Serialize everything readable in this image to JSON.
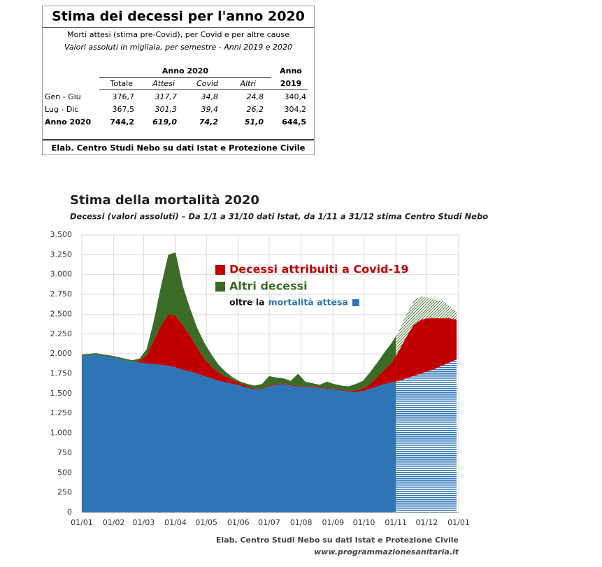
{
  "table": {
    "title": "Stima dei decessi per l'anno 2020",
    "subtitle": "Morti attesi (stima pre-Covid), per Covid e per altre cause",
    "subtitle2": "Valori assoluti in migliaia, per semestre - Anni 2019 e 2020",
    "group_header": "Anno 2020",
    "group_header2": "Anno",
    "columns": [
      "Totale",
      "Attesi",
      "Covid",
      "Altri",
      "2019"
    ],
    "rows": [
      [
        "Gen - Giu",
        "376,7",
        "317,7",
        "34,8",
        "24,8",
        "340,4"
      ],
      [
        "Lug - Dic",
        "367,5",
        "301,3",
        "39,4",
        "26,2",
        "304,2"
      ],
      [
        "Anno 2020",
        "744,2",
        "619,0",
        "74,2",
        "51,0",
        "644,5"
      ]
    ],
    "footer": "Elab. Centro Studi Nebo su dati Istat e Protezione Civile"
  },
  "chart_data": {
    "type": "stacked_area",
    "title": "Stima della mortalità 2020",
    "subtitle": "Decessi (valori assoluti) – Da 1/1 a 31/10 dati Istat, da 1/11 a 31/12 stima Centro Studi Nebo",
    "source": "Elab. Centro Studi Nebo su dati Istat e Protezione Civile",
    "website": "www.programmazionesanitaria.it",
    "legend_note": "oltre la",
    "estimate_start": 305,
    "grid": true,
    "xlim": [
      0,
      366
    ],
    "xticks": [
      {
        "value": 0,
        "label": "01/01"
      },
      {
        "value": 31,
        "label": "01/02"
      },
      {
        "value": 60,
        "label": "01/03"
      },
      {
        "value": 91,
        "label": "01/04"
      },
      {
        "value": 121,
        "label": "01/05"
      },
      {
        "value": 152,
        "label": "01/06"
      },
      {
        "value": 182,
        "label": "01/07"
      },
      {
        "value": 213,
        "label": "01/08"
      },
      {
        "value": 244,
        "label": "01/09"
      },
      {
        "value": 274,
        "label": "01/10"
      },
      {
        "value": 305,
        "label": "01/11"
      },
      {
        "value": 335,
        "label": "01/12"
      },
      {
        "value": 366,
        "label": "01/01"
      }
    ],
    "ylim": [
      0,
      3500
    ],
    "yticks": [
      0,
      {
        "value": 250,
        "label": "250"
      },
      {
        "value": 500,
        "label": "500"
      },
      {
        "value": 750,
        "label": "750"
      },
      {
        "value": 1000,
        "label": "1.000"
      },
      {
        "value": 1250,
        "label": "1.250"
      },
      {
        "value": 1500,
        "label": "1.500"
      },
      {
        "value": 1750,
        "label": "1.750"
      },
      {
        "value": 2000,
        "label": "2.000"
      },
      {
        "value": 2250,
        "label": "2.250"
      },
      {
        "value": 2500,
        "label": "2.500"
      },
      {
        "value": 2750,
        "label": "2.750"
      },
      {
        "value": 3000,
        "label": "3.000"
      },
      {
        "value": 3250,
        "label": "3.250"
      },
      {
        "value": 3500,
        "label": "3.500"
      }
    ],
    "x": [
      0,
      7,
      14,
      21,
      28,
      35,
      42,
      49,
      56,
      63,
      70,
      77,
      84,
      91,
      98,
      105,
      112,
      119,
      126,
      133,
      140,
      147,
      154,
      161,
      168,
      175,
      182,
      189,
      196,
      203,
      210,
      217,
      224,
      231,
      238,
      245,
      252,
      259,
      266,
      273,
      280,
      287,
      294,
      301,
      308,
      315,
      322,
      329,
      336,
      343,
      350,
      357,
      364
    ],
    "series": [
      {
        "name": "mortalità attesa",
        "color": "#2e75b6",
        "hatch": "horizontal",
        "values": [
          1970,
          1980,
          1990,
          1970,
          1960,
          1940,
          1920,
          1900,
          1890,
          1880,
          1870,
          1860,
          1850,
          1830,
          1800,
          1780,
          1750,
          1720,
          1690,
          1660,
          1640,
          1620,
          1600,
          1570,
          1550,
          1560,
          1590,
          1610,
          1620,
          1600,
          1590,
          1580,
          1580,
          1570,
          1560,
          1550,
          1540,
          1520,
          1520,
          1530,
          1560,
          1590,
          1620,
          1640,
          1660,
          1690,
          1720,
          1750,
          1780,
          1810,
          1850,
          1890,
          1930
        ]
      },
      {
        "name": "Decessi attribuiti a Covid-19",
        "color": "#c00000",
        "hatch": "none",
        "values": [
          0,
          0,
          0,
          0,
          0,
          0,
          0,
          0,
          20,
          100,
          300,
          500,
          650,
          650,
          560,
          450,
          330,
          220,
          150,
          100,
          70,
          50,
          30,
          20,
          10,
          10,
          10,
          10,
          10,
          10,
          10,
          10,
          10,
          10,
          10,
          10,
          10,
          10,
          20,
          30,
          60,
          120,
          180,
          250,
          380,
          520,
          640,
          680,
          670,
          640,
          600,
          560,
          500
        ]
      },
      {
        "name": "Altri decessi",
        "color": "#3b6b27",
        "hatch": "diagonal",
        "values": [
          20,
          20,
          20,
          20,
          20,
          20,
          20,
          20,
          30,
          80,
          250,
          500,
          750,
          800,
          500,
          350,
          250,
          200,
          150,
          100,
          60,
          30,
          20,
          30,
          40,
          50,
          120,
          80,
          60,
          50,
          150,
          60,
          40,
          30,
          80,
          60,
          50,
          60,
          80,
          100,
          150,
          180,
          220,
          250,
          250,
          280,
          300,
          300,
          260,
          230,
          220,
          150,
          100
        ]
      }
    ]
  }
}
